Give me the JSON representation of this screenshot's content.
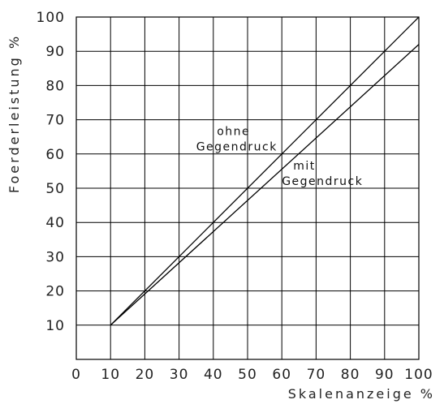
{
  "chart_data": {
    "type": "line",
    "xlabel": "Skalenanzeige %",
    "ylabel": "Foerderleistung %",
    "xlim": [
      0,
      100
    ],
    "ylim": [
      0,
      100
    ],
    "x_ticks": [
      0,
      10,
      20,
      30,
      40,
      50,
      60,
      70,
      80,
      90,
      100
    ],
    "y_ticks": [
      10,
      20,
      30,
      40,
      50,
      60,
      70,
      80,
      90,
      100
    ],
    "grid": true,
    "series": [
      {
        "x": [
          10,
          100
        ],
        "y": [
          10,
          100
        ]
      },
      {
        "x": [
          10,
          100
        ],
        "y": [
          10,
          92
        ]
      }
    ],
    "annotations": [
      {
        "lines": [
          "ohne",
          "Gegendruck"
        ],
        "x": 35,
        "y": 65
      },
      {
        "lines": [
          "mit",
          "Gegendruck"
        ],
        "x": 60,
        "y": 55
      }
    ]
  }
}
